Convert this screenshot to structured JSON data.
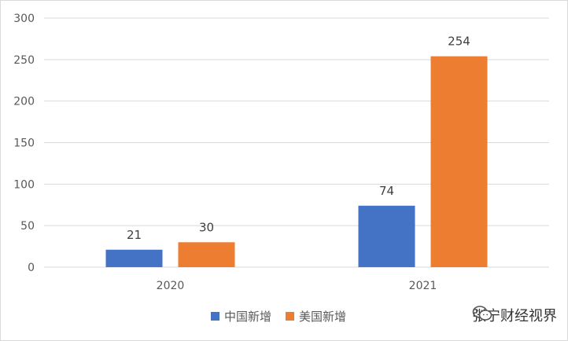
{
  "chart_data": {
    "type": "bar",
    "categories": [
      "2020",
      "2021"
    ],
    "series": [
      {
        "name": "中国新增",
        "values": [
          21,
          74
        ],
        "color": "#4472c4"
      },
      {
        "name": "美国新增",
        "values": [
          30,
          254
        ],
        "color": "#ed7d31"
      }
    ],
    "ylim": [
      0,
      300
    ],
    "yticks": [
      0,
      50,
      100,
      150,
      200,
      250,
      300
    ],
    "grid": true,
    "legend": "bottom"
  },
  "watermark": {
    "text": "张宁财经视界",
    "icon": "wechat-icon"
  }
}
